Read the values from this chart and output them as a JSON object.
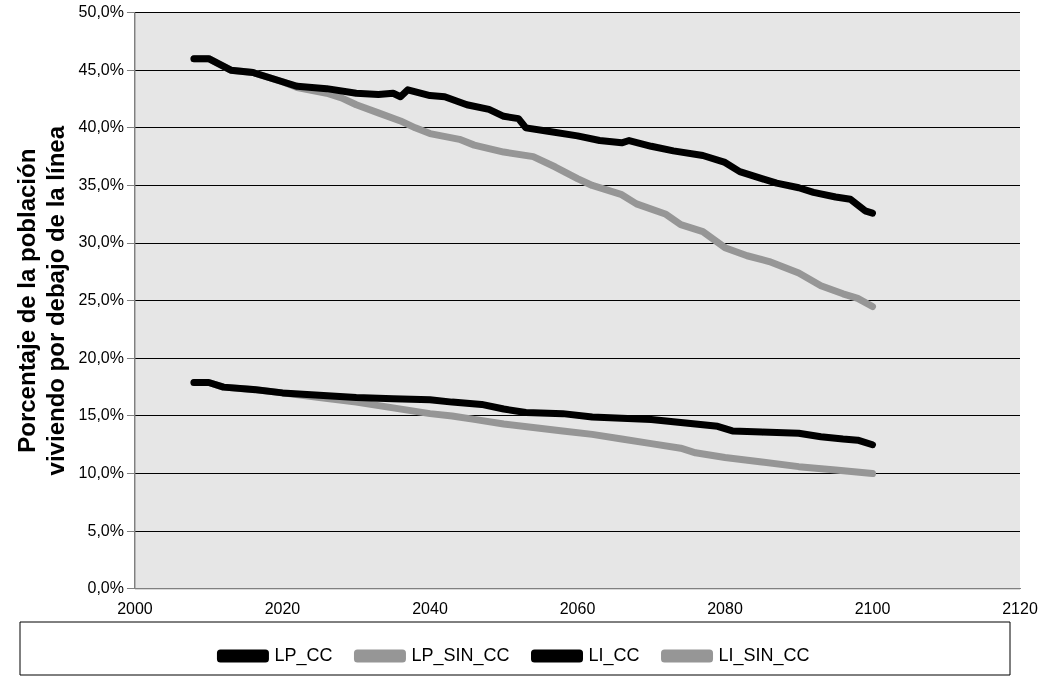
{
  "chart_data": {
    "type": "line",
    "ylabel": "Porcentaje de la población viviendo por debajo de la línea",
    "xlim": [
      2000,
      2120
    ],
    "xticks": [
      2000,
      2020,
      2040,
      2060,
      2080,
      2100,
      2120
    ],
    "ylim": [
      0,
      50
    ],
    "yticks": [
      {
        "value": 0,
        "label": "0,0%"
      },
      {
        "value": 5,
        "label": "5,0%"
      },
      {
        "value": 10,
        "label": "10,0%"
      },
      {
        "value": 15,
        "label": "15,0%"
      },
      {
        "value": 20,
        "label": "20,0%"
      },
      {
        "value": 25,
        "label": "25,0%"
      },
      {
        "value": 30,
        "label": "30,0%"
      },
      {
        "value": 35,
        "label": "35,0%"
      },
      {
        "value": 40,
        "label": "40,0%"
      },
      {
        "value": 45,
        "label": "45,0%"
      },
      {
        "value": 50,
        "label": "50,0%"
      }
    ],
    "grid": "y",
    "legend": "bottom",
    "marker": "none",
    "line_style": "solid",
    "series": [
      {
        "name": "LP_CC",
        "color": "#000000",
        "x": [
          2008,
          2010,
          2013,
          2016,
          2020,
          2022,
          2026,
          2030,
          2033,
          2035,
          2036,
          2037,
          2040,
          2042,
          2045,
          2048,
          2050,
          2052,
          2053,
          2056,
          2060,
          2063,
          2066,
          2067,
          2070,
          2073,
          2077,
          2080,
          2082,
          2085,
          2087,
          2090,
          2092,
          2095,
          2097,
          2099,
          2100
        ],
        "values": [
          46.0,
          46.0,
          45.0,
          44.8,
          44.0,
          43.6,
          43.4,
          43.0,
          42.9,
          43.0,
          42.7,
          43.3,
          42.8,
          42.7,
          42.0,
          41.6,
          41.0,
          40.8,
          40.0,
          39.7,
          39.3,
          38.9,
          38.7,
          38.9,
          38.4,
          38.0,
          37.6,
          37.0,
          36.2,
          35.6,
          35.2,
          34.8,
          34.4,
          34.0,
          33.8,
          32.8,
          32.6
        ]
      },
      {
        "name": "LP_SIN_CC",
        "color": "#969696",
        "x": [
          2008,
          2010,
          2013,
          2016,
          2020,
          2022,
          2026,
          2028,
          2030,
          2033,
          2036,
          2038,
          2040,
          2044,
          2046,
          2050,
          2054,
          2057,
          2060,
          2062,
          2066,
          2068,
          2072,
          2074,
          2077,
          2080,
          2083,
          2086,
          2090,
          2093,
          2096,
          2098,
          2100
        ],
        "values": [
          46.0,
          46.0,
          45.0,
          44.8,
          44.0,
          43.5,
          43.0,
          42.6,
          42.0,
          41.3,
          40.6,
          40.0,
          39.5,
          39.0,
          38.5,
          37.9,
          37.5,
          36.6,
          35.6,
          35.0,
          34.2,
          33.4,
          32.5,
          31.6,
          31.0,
          29.6,
          28.9,
          28.4,
          27.4,
          26.3,
          25.6,
          25.2,
          24.5
        ]
      },
      {
        "name": "LI_CC",
        "color": "#000000",
        "x": [
          2008,
          2010,
          2012,
          2016,
          2020,
          2025,
          2030,
          2035,
          2040,
          2043,
          2047,
          2050,
          2053,
          2058,
          2062,
          2066,
          2070,
          2073,
          2076,
          2079,
          2081,
          2085,
          2090,
          2093,
          2096,
          2098,
          2100
        ],
        "values": [
          17.9,
          17.9,
          17.5,
          17.3,
          17.0,
          16.8,
          16.6,
          16.5,
          16.4,
          16.2,
          16.0,
          15.6,
          15.3,
          15.2,
          14.9,
          14.8,
          14.7,
          14.5,
          14.3,
          14.1,
          13.7,
          13.6,
          13.5,
          13.2,
          13.0,
          12.9,
          12.5
        ]
      },
      {
        "name": "LI_SIN_CC",
        "color": "#969696",
        "x": [
          2008,
          2010,
          2012,
          2016,
          2020,
          2025,
          2030,
          2035,
          2040,
          2043,
          2046,
          2050,
          2054,
          2058,
          2062,
          2066,
          2070,
          2074,
          2076,
          2080,
          2085,
          2090,
          2095,
          2100
        ],
        "values": [
          17.9,
          17.9,
          17.5,
          17.3,
          17.0,
          16.6,
          16.2,
          15.7,
          15.2,
          15.0,
          14.7,
          14.3,
          14.0,
          13.7,
          13.4,
          13.0,
          12.6,
          12.2,
          11.8,
          11.4,
          11.0,
          10.6,
          10.3,
          10.0
        ]
      }
    ]
  }
}
